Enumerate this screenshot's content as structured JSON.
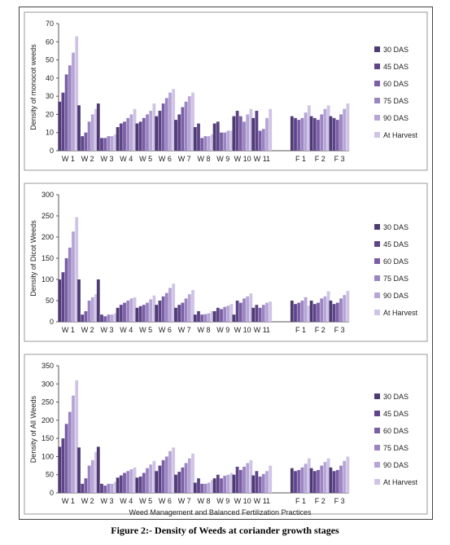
{
  "caption": "Figure 2:- Density of Weeds at coriander growth stages",
  "colors": [
    "#4e3b73",
    "#5e4488",
    "#7a5ea6",
    "#9b84c2",
    "#b7a5d6",
    "#cfc4e6"
  ],
  "chart_data": [
    {
      "type": "bar",
      "ylabel": "Density of monocot weeds",
      "xlabel": "",
      "ylim": [
        0,
        70
      ],
      "yticks": [
        0,
        10,
        20,
        30,
        40,
        50,
        60,
        70
      ],
      "categories": [
        "W 1",
        "W 2",
        "W 3",
        "W 4",
        "W 5",
        "W 6",
        "W 7",
        "W 8",
        "W 9",
        "W 10",
        "W 11",
        "",
        "F 1",
        "F 2",
        "F 3"
      ],
      "series": [
        {
          "name": "30 DAS",
          "values": [
            27,
            25,
            26,
            13,
            15,
            19,
            17,
            13,
            15,
            19,
            18,
            null,
            19,
            19,
            19
          ]
        },
        {
          "name": "45 DAS",
          "values": [
            32,
            8,
            7,
            15,
            16,
            22,
            20,
            15,
            16,
            22,
            22,
            null,
            18,
            18,
            18
          ]
        },
        {
          "name": "60 DAS",
          "values": [
            42,
            10,
            7,
            16,
            18,
            26,
            24,
            7,
            10,
            19,
            11,
            null,
            17,
            17,
            17
          ]
        },
        {
          "name": "75 DAS",
          "values": [
            47,
            16,
            8,
            18,
            20,
            29,
            27,
            8,
            10,
            16,
            12,
            null,
            18,
            20,
            20
          ]
        },
        {
          "name": "90 DAS",
          "values": [
            54,
            20,
            8,
            20,
            22,
            32,
            30,
            8,
            11,
            20,
            18,
            null,
            21,
            23,
            23
          ]
        },
        {
          "name": "At Harvest",
          "values": [
            63,
            23,
            9,
            23,
            26,
            34,
            32,
            9,
            11,
            23,
            23,
            null,
            25,
            25,
            26
          ]
        }
      ]
    },
    {
      "type": "bar",
      "ylabel": "Density of Dicot Weeds",
      "xlabel": "",
      "ylim": [
        0,
        300
      ],
      "yticks": [
        0,
        50,
        100,
        150,
        200,
        250,
        300
      ],
      "categories": [
        "W 1",
        "W 2",
        "W 3",
        "W 4",
        "W 5",
        "W 6",
        "W 7",
        "W 8",
        "W 9",
        "W 10",
        "W 11",
        "",
        "F 1",
        "F 2",
        "F 3"
      ],
      "series": [
        {
          "name": "30 DAS",
          "values": [
            100,
            100,
            100,
            33,
            33,
            40,
            33,
            17,
            25,
            17,
            33,
            null,
            50,
            50,
            50
          ]
        },
        {
          "name": "45 DAS",
          "values": [
            117,
            17,
            17,
            40,
            37,
            50,
            40,
            25,
            33,
            50,
            40,
            null,
            42,
            42,
            42
          ]
        },
        {
          "name": "60 DAS",
          "values": [
            150,
            25,
            13,
            45,
            40,
            60,
            45,
            17,
            30,
            45,
            33,
            null,
            45,
            45,
            45
          ]
        },
        {
          "name": "75 DAS",
          "values": [
            175,
            50,
            17,
            50,
            45,
            68,
            55,
            18,
            35,
            55,
            40,
            null,
            50,
            55,
            55
          ]
        },
        {
          "name": "90 DAS",
          "values": [
            213,
            58,
            17,
            55,
            53,
            80,
            65,
            20,
            38,
            60,
            45,
            null,
            58,
            60,
            63
          ]
        },
        {
          "name": "At Harvest",
          "values": [
            247,
            65,
            20,
            58,
            62,
            90,
            75,
            25,
            42,
            67,
            48,
            null,
            38,
            72,
            73
          ]
        }
      ]
    },
    {
      "type": "bar",
      "ylabel": "Density of All Weeds",
      "xlabel": "Weed Management and Balanced Fertilization Practices",
      "ylim": [
        0,
        350
      ],
      "yticks": [
        0,
        50,
        100,
        150,
        200,
        250,
        300,
        350
      ],
      "categories": [
        "W 1",
        "W 2",
        "W 3",
        "W 4",
        "W 5",
        "W 6",
        "W 7",
        "W 8",
        "W 9",
        "W 10",
        "W 11",
        "",
        "F 1",
        "F 2",
        "F 3"
      ],
      "series": [
        {
          "name": "30 DAS",
          "values": [
            127,
            125,
            127,
            42,
            42,
            60,
            50,
            28,
            40,
            50,
            48,
            null,
            68,
            68,
            70
          ]
        },
        {
          "name": "45 DAS",
          "values": [
            150,
            25,
            25,
            48,
            45,
            75,
            58,
            40,
            50,
            72,
            60,
            null,
            60,
            60,
            60
          ]
        },
        {
          "name": "60 DAS",
          "values": [
            190,
            40,
            20,
            55,
            55,
            90,
            70,
            25,
            40,
            63,
            45,
            null,
            63,
            63,
            63
          ]
        },
        {
          "name": "75 DAS",
          "values": [
            223,
            75,
            25,
            60,
            68,
            100,
            82,
            25,
            47,
            72,
            52,
            null,
            70,
            75,
            75
          ]
        },
        {
          "name": "90 DAS",
          "values": [
            268,
            90,
            25,
            65,
            78,
            115,
            95,
            28,
            50,
            82,
            60,
            null,
            80,
            85,
            88
          ]
        },
        {
          "name": "At Harvest",
          "values": [
            310,
            113,
            30,
            70,
            88,
            125,
            108,
            35,
            55,
            90,
            75,
            null,
            95,
            95,
            100
          ]
        }
      ]
    }
  ]
}
